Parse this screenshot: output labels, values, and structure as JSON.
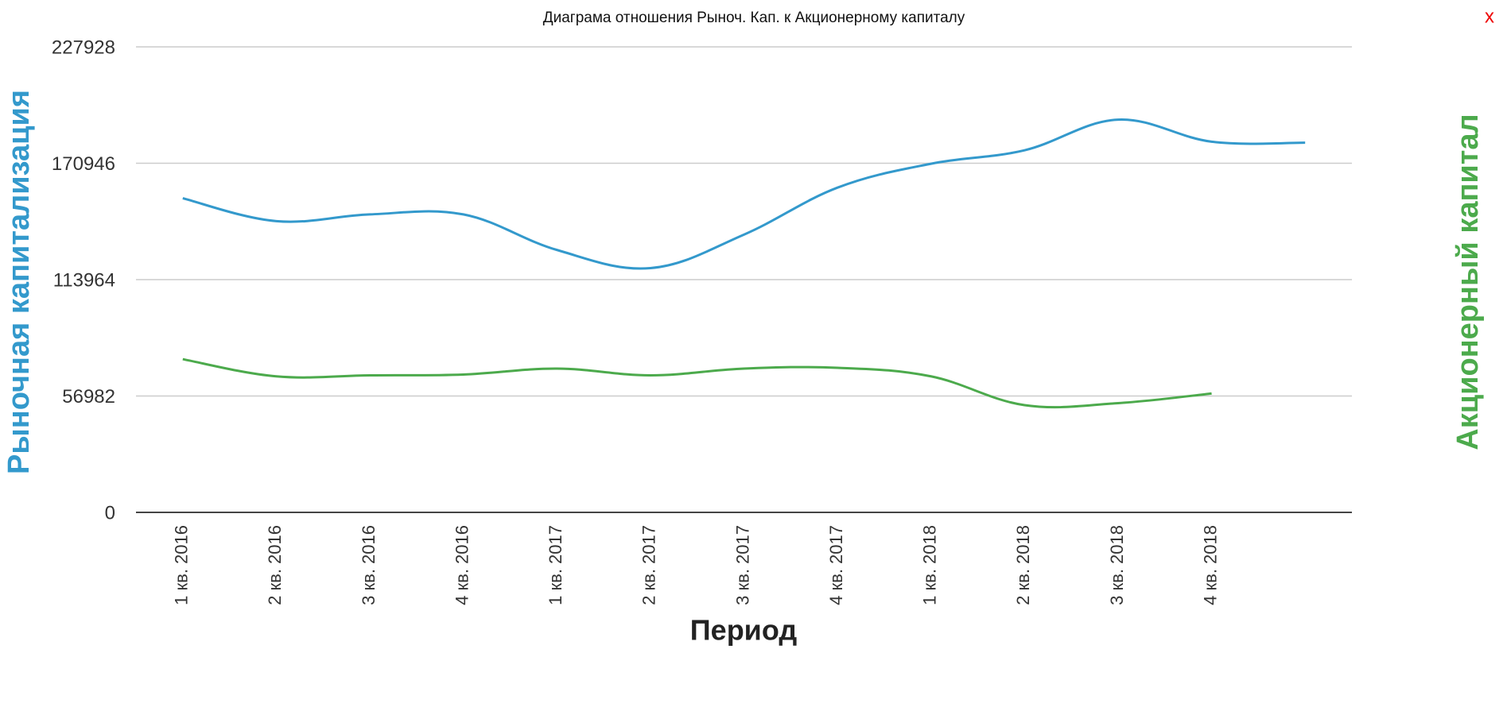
{
  "close": "x",
  "chart_data": {
    "type": "line",
    "title": "Диаграма отношения Рыноч. Кап. к Акционерному капиталу",
    "x_label": "Период",
    "y_label": "Рыночная капитализация",
    "y2_label": "Акционерный капитал",
    "categories": [
      "1 кв. 2016",
      "2 кв. 2016",
      "3 кв. 2016",
      "4 кв. 2016",
      "1 кв. 2017",
      "2 кв. 2017",
      "3 кв. 2017",
      "4 кв. 2017",
      "1 кв. 2018",
      "2 кв. 2018",
      "3 кв. 2018",
      "4 кв. 2018",
      null
    ],
    "series": [
      {
        "name": "Рыночная капитализация",
        "color": "#3399cc",
        "values": [
          153800,
          142600,
          145900,
          145900,
          128500,
          119600,
          136000,
          159000,
          170700,
          177300,
          192300,
          181500,
          181000
        ]
      },
      {
        "name": "Акционерный капитал",
        "color": "#4caa4c",
        "values": [
          75000,
          66600,
          67100,
          67500,
          70400,
          67100,
          70400,
          70800,
          66600,
          52500,
          53500,
          58200,
          null
        ]
      }
    ],
    "ylim": [
      0,
      227928
    ],
    "yticks": [
      0,
      56982,
      113964,
      170946,
      227928
    ],
    "grid": true
  }
}
